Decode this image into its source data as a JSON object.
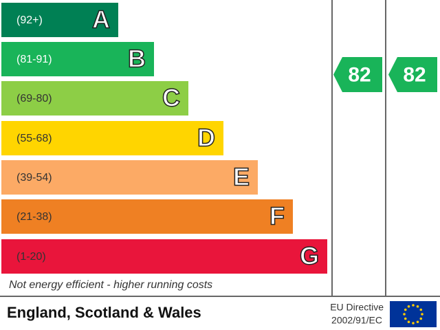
{
  "bands": [
    {
      "range": "(92+)",
      "letter": "A",
      "color": "#008054",
      "text_color": "#ffffff"
    },
    {
      "range": "(81-91)",
      "letter": "B",
      "color": "#19b459",
      "text_color": "#ffffff"
    },
    {
      "range": "(69-80)",
      "letter": "C",
      "color": "#8dce46",
      "text_color": "#333333"
    },
    {
      "range": "(55-68)",
      "letter": "D",
      "color": "#ffd500",
      "text_color": "#333333"
    },
    {
      "range": "(39-54)",
      "letter": "E",
      "color": "#fcaa65",
      "text_color": "#333333"
    },
    {
      "range": "(21-38)",
      "letter": "F",
      "color": "#ef8023",
      "text_color": "#333333"
    },
    {
      "range": "(1-20)",
      "letter": "G",
      "color": "#e9153b",
      "text_color": "#333333"
    }
  ],
  "ratings": [
    {
      "value": 82,
      "color": "#19b459"
    },
    {
      "value": 82,
      "color": "#19b459"
    }
  ],
  "footnote": "Not energy efficient - higher running costs",
  "footer": {
    "region": "England, Scotland & Wales",
    "directive_line1": "EU Directive",
    "directive_line2": "2002/91/EC"
  }
}
